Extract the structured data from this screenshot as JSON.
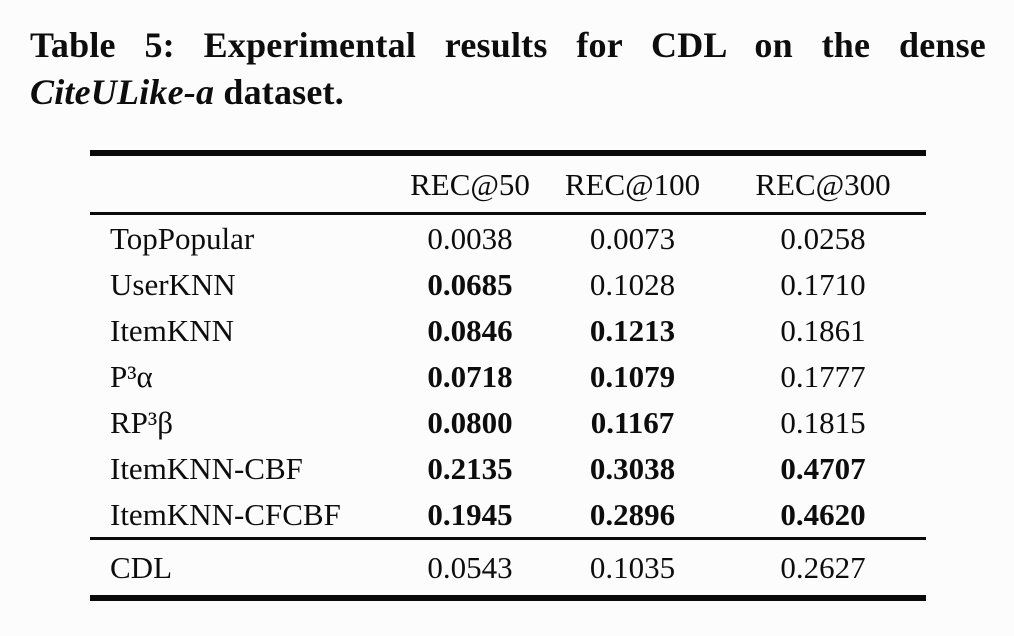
{
  "caption": {
    "line1": "Table 5: Experimental results for CDL on the dense",
    "dataset": "CiteULike-a",
    "suffix": " dataset."
  },
  "colors": {
    "background": "#fcfcfc",
    "text": "#0d0d0d",
    "rule": "#0a0a0a"
  },
  "table": {
    "columns": [
      "REC@50",
      "REC@100",
      "REC@300"
    ],
    "rows": [
      {
        "label": "TopPopular",
        "cells": [
          {
            "text": "0.0038",
            "bold": false
          },
          {
            "text": "0.0073",
            "bold": false
          },
          {
            "text": "0.0258",
            "bold": false
          }
        ]
      },
      {
        "label": "UserKNN",
        "cells": [
          {
            "text": "0.0685",
            "bold": true
          },
          {
            "text": "0.1028",
            "bold": false
          },
          {
            "text": "0.1710",
            "bold": false
          }
        ]
      },
      {
        "label": "ItemKNN",
        "cells": [
          {
            "text": "0.0846",
            "bold": true
          },
          {
            "text": "0.1213",
            "bold": true
          },
          {
            "text": "0.1861",
            "bold": false
          }
        ]
      },
      {
        "label": "P³α",
        "cells": [
          {
            "text": "0.0718",
            "bold": true
          },
          {
            "text": "0.1079",
            "bold": true
          },
          {
            "text": "0.1777",
            "bold": false
          }
        ]
      },
      {
        "label": "RP³β",
        "cells": [
          {
            "text": "0.0800",
            "bold": true
          },
          {
            "text": "0.1167",
            "bold": true
          },
          {
            "text": "0.1815",
            "bold": false
          }
        ]
      },
      {
        "label": "ItemKNN-CBF",
        "cells": [
          {
            "text": "0.2135",
            "bold": true
          },
          {
            "text": "0.3038",
            "bold": true
          },
          {
            "text": "0.4707",
            "bold": true
          }
        ]
      },
      {
        "label": "ItemKNN-CFCBF",
        "cells": [
          {
            "text": "0.1945",
            "bold": true
          },
          {
            "text": "0.2896",
            "bold": true
          },
          {
            "text": "0.4620",
            "bold": true
          }
        ]
      }
    ],
    "footer": {
      "label": "CDL",
      "cells": [
        {
          "text": "0.0543",
          "bold": false
        },
        {
          "text": "0.1035",
          "bold": false
        },
        {
          "text": "0.2627",
          "bold": false
        }
      ]
    }
  }
}
